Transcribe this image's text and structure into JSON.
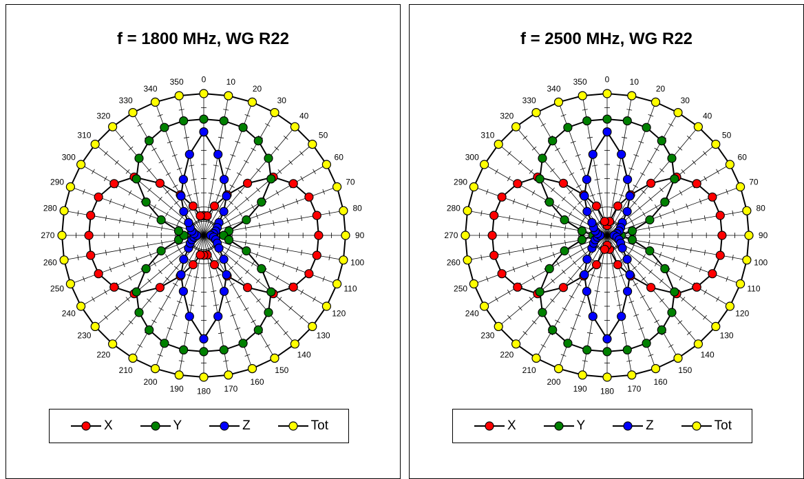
{
  "colors": {
    "X": "#ff0000",
    "Y": "#008000",
    "Z": "#0000ff",
    "Tot": "#ffff00"
  },
  "chart_data": [
    {
      "type": "polar",
      "title": "f = 1800 MHz, WG R22",
      "angles": [
        0,
        10,
        20,
        30,
        40,
        50,
        60,
        70,
        80,
        90,
        100,
        110,
        120,
        130,
        140,
        150,
        160,
        170,
        180,
        190,
        200,
        210,
        220,
        230,
        240,
        250,
        260,
        270,
        280,
        290,
        300,
        310,
        320,
        330,
        340,
        350
      ],
      "angle_labels": [
        "0",
        "10",
        "20",
        "30",
        "40",
        "50",
        "60",
        "70",
        "80",
        "90",
        "100",
        "110",
        "120",
        "130",
        "140",
        "150",
        "160",
        "170",
        "180",
        "190",
        "200",
        "210",
        "220",
        "230",
        "240",
        "250",
        "260",
        "270",
        "280",
        "290",
        "300",
        "310",
        "320",
        "330",
        "340",
        "350"
      ],
      "rlim": [
        0,
        1
      ],
      "grid": true,
      "legend_position": "bottom",
      "series": [
        {
          "name": "X",
          "values": [
            0.14,
            0.14,
            0.22,
            0.33,
            0.48,
            0.64,
            0.73,
            0.79,
            0.81,
            0.81,
            0.81,
            0.79,
            0.73,
            0.64,
            0.48,
            0.33,
            0.22,
            0.14,
            0.14,
            0.14,
            0.22,
            0.33,
            0.48,
            0.64,
            0.73,
            0.79,
            0.81,
            0.81,
            0.81,
            0.79,
            0.73,
            0.64,
            0.48,
            0.33,
            0.22,
            0.14
          ]
        },
        {
          "name": "Y",
          "values": [
            0.82,
            0.82,
            0.81,
            0.77,
            0.71,
            0.62,
            0.47,
            0.32,
            0.18,
            0.14,
            0.18,
            0.32,
            0.47,
            0.62,
            0.71,
            0.77,
            0.81,
            0.82,
            0.82,
            0.82,
            0.81,
            0.77,
            0.71,
            0.62,
            0.47,
            0.32,
            0.18,
            0.14,
            0.18,
            0.32,
            0.47,
            0.62,
            0.71,
            0.77,
            0.81,
            0.82
          ]
        },
        {
          "name": "Z",
          "values": [
            0.73,
            0.58,
            0.42,
            0.32,
            0.22,
            0.14,
            0.11,
            0.09,
            0.07,
            0.05,
            0.07,
            0.09,
            0.11,
            0.14,
            0.22,
            0.32,
            0.42,
            0.58,
            0.73,
            0.58,
            0.42,
            0.32,
            0.22,
            0.14,
            0.11,
            0.09,
            0.07,
            0.05,
            0.07,
            0.09,
            0.11,
            0.14,
            0.22,
            0.32,
            0.42,
            0.58
          ]
        },
        {
          "name": "Tot",
          "values": [
            1,
            1,
            1,
            1,
            1,
            1,
            1,
            1,
            1,
            1,
            1,
            1,
            1,
            1,
            1,
            1,
            1,
            1,
            1,
            1,
            1,
            1,
            1,
            1,
            1,
            1,
            1,
            1,
            1,
            1,
            1,
            1,
            1,
            1,
            1,
            1
          ]
        }
      ]
    },
    {
      "type": "polar",
      "title": "f = 2500 MHz, WG R22",
      "angles": [
        0,
        10,
        20,
        30,
        40,
        50,
        60,
        70,
        80,
        90,
        100,
        110,
        120,
        130,
        140,
        150,
        160,
        170,
        180,
        190,
        200,
        210,
        220,
        230,
        240,
        250,
        260,
        270,
        280,
        290,
        300,
        310,
        320,
        330,
        340,
        350
      ],
      "angle_labels": [
        "0",
        "10",
        "20",
        "30",
        "40",
        "50",
        "60",
        "70",
        "80",
        "90",
        "100",
        "110",
        "120",
        "130",
        "140",
        "150",
        "160",
        "170",
        "180",
        "190",
        "200",
        "210",
        "220",
        "230",
        "240",
        "250",
        "260",
        "270",
        "280",
        "290",
        "300",
        "310",
        "320",
        "330",
        "340",
        "350"
      ],
      "rlim": [
        0,
        1
      ],
      "grid": true,
      "legend_position": "bottom",
      "series": [
        {
          "name": "X",
          "values": [
            0.07,
            0.1,
            0.22,
            0.33,
            0.48,
            0.64,
            0.73,
            0.79,
            0.81,
            0.81,
            0.81,
            0.79,
            0.73,
            0.64,
            0.48,
            0.33,
            0.22,
            0.1,
            0.07,
            0.1,
            0.22,
            0.33,
            0.48,
            0.64,
            0.73,
            0.79,
            0.81,
            0.81,
            0.81,
            0.79,
            0.73,
            0.64,
            0.48,
            0.33,
            0.22,
            0.1
          ]
        },
        {
          "name": "Y",
          "values": [
            0.82,
            0.82,
            0.81,
            0.77,
            0.71,
            0.62,
            0.47,
            0.32,
            0.18,
            0.1,
            0.18,
            0.32,
            0.47,
            0.62,
            0.71,
            0.77,
            0.81,
            0.82,
            0.82,
            0.82,
            0.81,
            0.77,
            0.71,
            0.62,
            0.47,
            0.32,
            0.18,
            0.1,
            0.18,
            0.32,
            0.47,
            0.62,
            0.71,
            0.77,
            0.81,
            0.82
          ]
        },
        {
          "name": "Z",
          "values": [
            0.73,
            0.58,
            0.42,
            0.32,
            0.22,
            0.14,
            0.11,
            0.09,
            0.07,
            0.05,
            0.07,
            0.09,
            0.11,
            0.14,
            0.22,
            0.32,
            0.42,
            0.58,
            0.73,
            0.58,
            0.42,
            0.32,
            0.22,
            0.14,
            0.11,
            0.09,
            0.07,
            0.05,
            0.07,
            0.09,
            0.11,
            0.14,
            0.22,
            0.32,
            0.42,
            0.58
          ]
        },
        {
          "name": "Tot",
          "values": [
            1,
            1,
            1,
            1,
            1,
            1,
            1,
            1,
            1,
            1,
            1,
            1,
            1,
            1,
            1,
            1,
            1,
            1,
            1,
            1,
            1,
            1,
            1,
            1,
            1,
            1,
            1,
            1,
            1,
            1,
            1,
            1,
            1,
            1,
            1,
            1
          ]
        }
      ]
    }
  ]
}
